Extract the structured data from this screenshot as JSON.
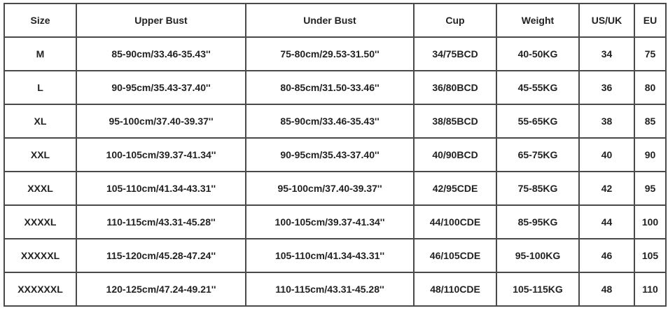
{
  "size_chart": {
    "headers": [
      "Size",
      "Upper Bust",
      "Under Bust",
      "Cup",
      "Weight",
      "US/UK",
      "EU"
    ],
    "rows": [
      [
        "M",
        "85-90cm/33.46-35.43''",
        "75-80cm/29.53-31.50''",
        "34/75BCD",
        "40-50KG",
        "34",
        "75"
      ],
      [
        "L",
        "90-95cm/35.43-37.40''",
        "80-85cm/31.50-33.46''",
        "36/80BCD",
        "45-55KG",
        "36",
        "80"
      ],
      [
        "XL",
        "95-100cm/37.40-39.37''",
        "85-90cm/33.46-35.43''",
        "38/85BCD",
        "55-65KG",
        "38",
        "85"
      ],
      [
        "XXL",
        "100-105cm/39.37-41.34''",
        "90-95cm/35.43-37.40''",
        "40/90BCD",
        "65-75KG",
        "40",
        "90"
      ],
      [
        "XXXL",
        "105-110cm/41.34-43.31''",
        "95-100cm/37.40-39.37''",
        "42/95CDE",
        "75-85KG",
        "42",
        "95"
      ],
      [
        "XXXXL",
        "110-115cm/43.31-45.28''",
        "100-105cm/39.37-41.34''",
        "44/100CDE",
        "85-95KG",
        "44",
        "100"
      ],
      [
        "XXXXXL",
        "115-120cm/45.28-47.24''",
        "105-110cm/41.34-43.31''",
        "46/105CDE",
        "95-100KG",
        "46",
        "105"
      ],
      [
        "XXXXXXL",
        "120-125cm/47.24-49.21''",
        "110-115cm/43.31-45.28''",
        "48/110CDE",
        "105-115KG",
        "48",
        "110"
      ]
    ]
  }
}
